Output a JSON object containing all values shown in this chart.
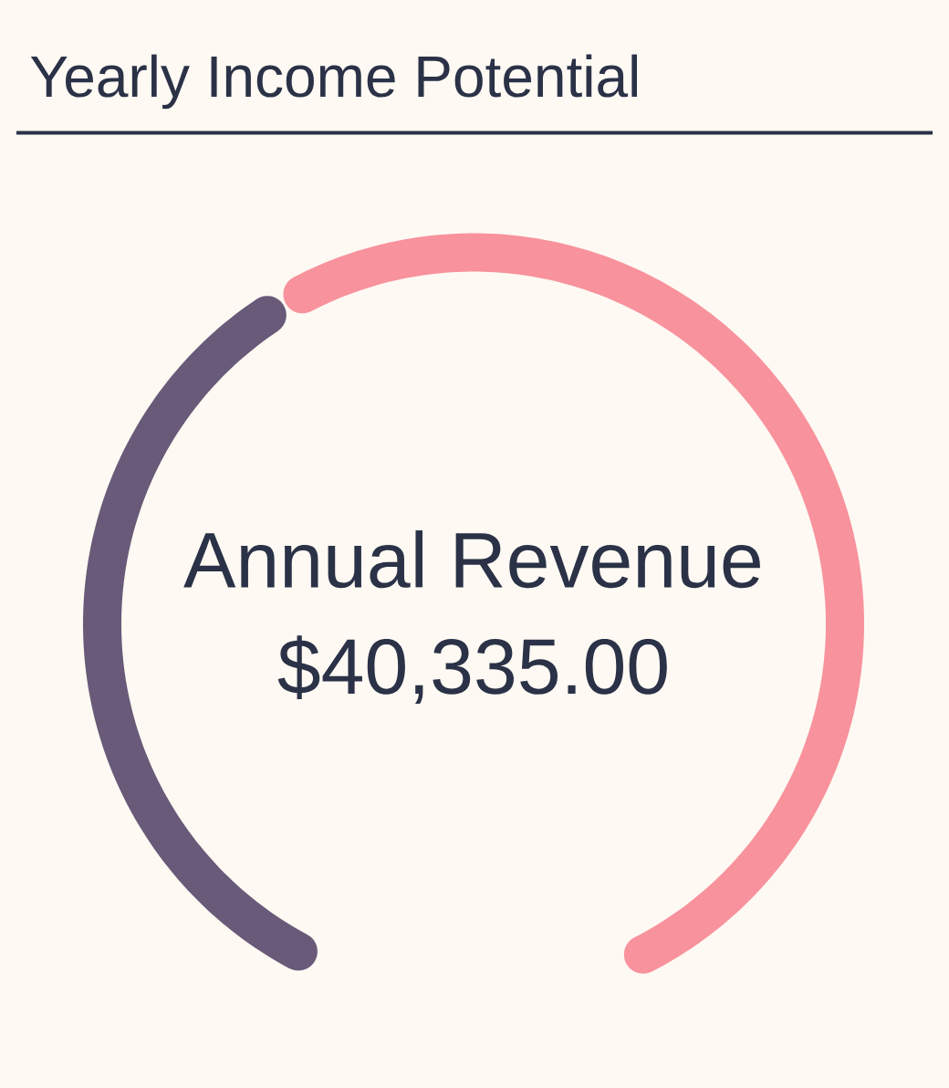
{
  "chart_data": {
    "type": "donut",
    "title": "Yearly Income Potential",
    "categories": [
      null,
      null
    ],
    "values": [
      40,
      60
    ],
    "colors": [
      "#685a78",
      "#f8929c"
    ],
    "annotations": [
      "Annual Revenue",
      "$40,335.00"
    ]
  }
}
